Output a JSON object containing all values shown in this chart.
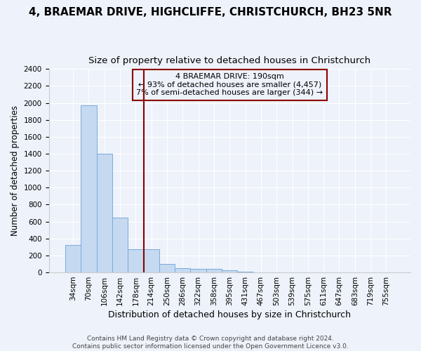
{
  "title1": "4, BRAEMAR DRIVE, HIGHCLIFFE, CHRISTCHURCH, BH23 5NR",
  "title2": "Size of property relative to detached houses in Christchurch",
  "xlabel": "Distribution of detached houses by size in Christchurch",
  "ylabel": "Number of detached properties",
  "footer1": "Contains HM Land Registry data © Crown copyright and database right 2024.",
  "footer2": "Contains public sector information licensed under the Open Government Licence v3.0.",
  "bar_labels": [
    "34sqm",
    "70sqm",
    "106sqm",
    "142sqm",
    "178sqm",
    "214sqm",
    "250sqm",
    "286sqm",
    "322sqm",
    "358sqm",
    "395sqm",
    "431sqm",
    "467sqm",
    "503sqm",
    "539sqm",
    "575sqm",
    "611sqm",
    "647sqm",
    "683sqm",
    "719sqm",
    "755sqm"
  ],
  "bar_values": [
    325,
    1970,
    1400,
    650,
    275,
    270,
    100,
    50,
    42,
    38,
    25,
    5,
    2,
    1,
    1,
    0,
    0,
    0,
    0,
    0,
    0
  ],
  "bar_color": "#c5d9f0",
  "bar_edge_color": "#7aabdc",
  "vline_x": 4.5,
  "vline_color": "#8b0000",
  "annotation_line1": "4 BRAEMAR DRIVE: 190sqm",
  "annotation_line2": "← 93% of detached houses are smaller (4,457)",
  "annotation_line3": "7% of semi-detached houses are larger (344) →",
  "annotation_box_color": "#8b0000",
  "ylim": [
    0,
    2400
  ],
  "yticks": [
    0,
    200,
    400,
    600,
    800,
    1000,
    1200,
    1400,
    1600,
    1800,
    2000,
    2200,
    2400
  ],
  "background_color": "#eef2fa",
  "grid_color": "#ffffff",
  "title_fontsize": 11,
  "subtitle_fontsize": 9.5,
  "ylabel_fontsize": 8.5,
  "xlabel_fontsize": 9,
  "tick_fontsize": 7.5,
  "footer_fontsize": 6.5
}
